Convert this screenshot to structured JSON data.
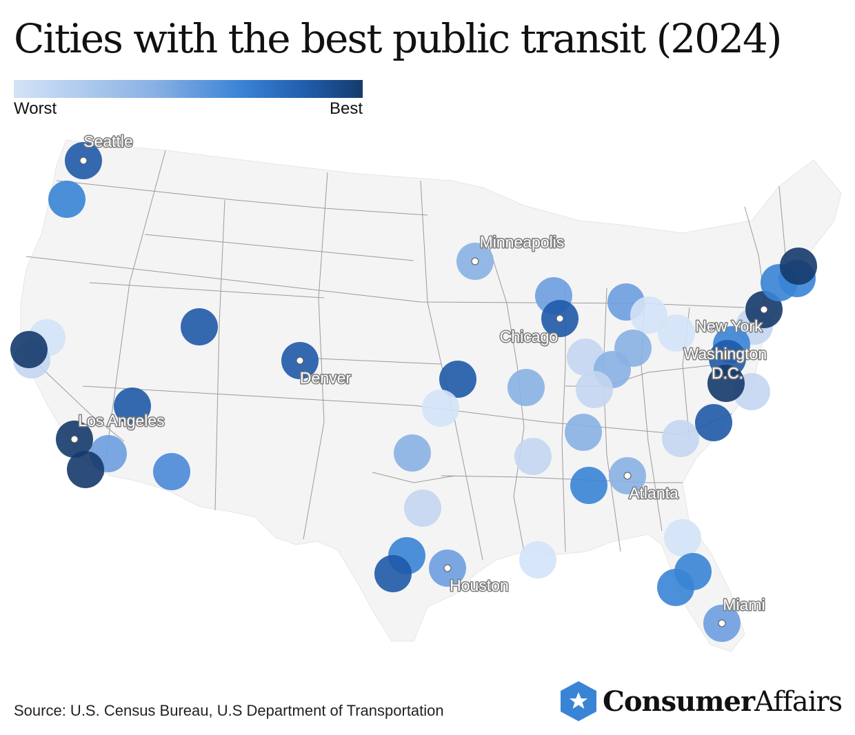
{
  "title": "Cities with the best public transit (2024)",
  "legend": {
    "min_label": "Worst",
    "max_label": "Best"
  },
  "colors": {
    "scale": [
      "#d3e3f7",
      "#8ab1e4",
      "#3a84d6",
      "#1f5aa8",
      "#153a6b"
    ],
    "land": "#f4f4f4",
    "state_border": "#9a9a9a"
  },
  "labeled_cities": [
    {
      "name": "Seattle"
    },
    {
      "name": "Minneapolis"
    },
    {
      "name": "Chicago"
    },
    {
      "name": "New York"
    },
    {
      "name": "Washington D.C."
    },
    {
      "name": "Denver"
    },
    {
      "name": "Los Angeles"
    },
    {
      "name": "Atlanta"
    },
    {
      "name": "Houston"
    },
    {
      "name": "Miami"
    }
  ],
  "source": "Source: U.S. Census Bureau, U.S Department of Transportation",
  "brand": {
    "name_bold": "Consumer",
    "name_regular": "Affairs",
    "icon": "star-badge-icon"
  }
}
